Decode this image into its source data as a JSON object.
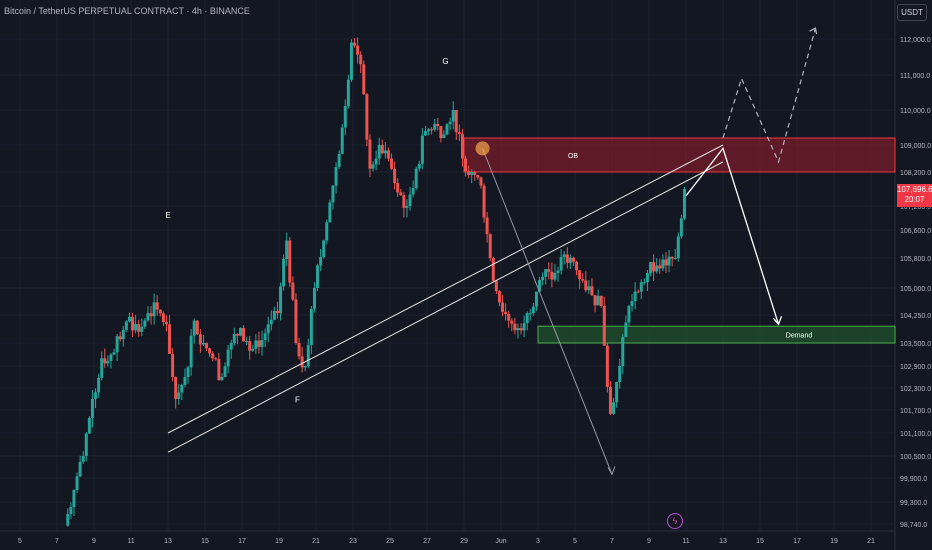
{
  "header": {
    "title": "Bitcoin / TetherUS PERPETUAL CONTRACT · 4h · BINANCE"
  },
  "unit_label": "USDT",
  "current_price": {
    "value": "107,696.6",
    "countdown": "20:07"
  },
  "colors": {
    "background": "#131722",
    "up": "#26a69a",
    "down": "#ef5350",
    "ob_zone": "#7a1c2a",
    "demand_zone": "#1f4d2c",
    "badge": "#f23645"
  },
  "icons": [
    "lightning-icon"
  ],
  "chart_data": {
    "type": "candlestick",
    "title": "",
    "x_ticks": [
      "5",
      "7",
      "9",
      "11",
      "13",
      "15",
      "17",
      "19",
      "21",
      "23",
      "25",
      "27",
      "29",
      "Jun",
      "3",
      "5",
      "7",
      "9",
      "11",
      "13",
      "15",
      "17",
      "19",
      "21"
    ],
    "y_ticks": [
      "112,000.0",
      "111,000.0",
      "110,000.0",
      "109,000.0",
      "108,200.0",
      "107,200.0",
      "106,600.0",
      "105,800.0",
      "105,000.0",
      "104,250.0",
      "103,500.0",
      "102,900.0",
      "102,300.0",
      "101,700.0",
      "101,100.0",
      "100,500.0",
      "99,900.0",
      "99,300.0",
      "98,740.0"
    ],
    "ylim": [
      98600,
      112600
    ],
    "price_series": [
      [
        "May 6 12:00",
        98700
      ],
      [
        "May 7",
        99600
      ],
      [
        "May 7 12:00",
        100500
      ],
      [
        "May 8",
        102000
      ],
      [
        "May 8 12:00",
        103100
      ],
      [
        "May 9",
        103200
      ],
      [
        "May 9 12:00",
        103600
      ],
      [
        "May 10",
        104200
      ],
      [
        "May 10 12:00",
        103800
      ],
      [
        "May 11",
        104300
      ],
      [
        "May 11 12:00",
        104400
      ],
      [
        "May 12",
        104000
      ],
      [
        "May 12 12:00",
        102000
      ],
      [
        "May 13",
        102600
      ],
      [
        "May 13 12:00",
        104100
      ],
      [
        "May 14",
        103500
      ],
      [
        "May 14 12:00",
        103100
      ],
      [
        "May 15",
        102600
      ],
      [
        "May 15 12:00",
        103500
      ],
      [
        "May 16",
        103900
      ],
      [
        "May 16 12:00",
        103300
      ],
      [
        "May 17",
        103400
      ],
      [
        "May 17 12:00",
        104000
      ],
      [
        "May 18",
        104300
      ],
      [
        "May 18 12:00",
        106300
      ],
      [
        "May 19",
        103500
      ],
      [
        "May 19 12:00",
        102900
      ],
      [
        "May 20",
        105000
      ],
      [
        "May 20 12:00",
        106300
      ],
      [
        "May 21",
        107800
      ],
      [
        "May 21 12:00",
        109500
      ],
      [
        "May 22",
        111900
      ],
      [
        "May 22 12:00",
        111300
      ],
      [
        "May 23",
        108300
      ],
      [
        "May 23 12:00",
        109000
      ],
      [
        "May 24",
        108600
      ],
      [
        "May 24 12:00",
        107600
      ],
      [
        "May 25",
        107200
      ],
      [
        "May 25 12:00",
        108300
      ],
      [
        "May 26",
        109400
      ],
      [
        "May 26 12:00",
        109600
      ],
      [
        "May 27",
        109300
      ],
      [
        "May 27 12:00",
        110000
      ],
      [
        "May 28",
        108600
      ],
      [
        "May 28 12:00",
        108200
      ],
      [
        "May 29",
        107800
      ],
      [
        "May 29 12:00",
        105800
      ],
      [
        "May 30",
        104600
      ],
      [
        "May 30 12:00",
        104100
      ],
      [
        "May 31",
        103900
      ],
      [
        "May 31 12:00",
        104300
      ],
      [
        "Jun 1",
        104900
      ],
      [
        "Jun 1 12:00",
        105500
      ],
      [
        "Jun 2",
        105400
      ],
      [
        "Jun 2 12:00",
        105900
      ],
      [
        "Jun 3",
        105700
      ],
      [
        "Jun 3 12:00",
        105200
      ],
      [
        "Jun 4",
        104800
      ],
      [
        "Jun 4 12:00",
        104500
      ],
      [
        "Jun 5",
        101600
      ],
      [
        "Jun 5 12:00",
        102900
      ],
      [
        "Jun 6",
        104500
      ],
      [
        "Jun 6 12:00",
        104900
      ],
      [
        "Jun 7",
        105400
      ],
      [
        "Jun 7 12:00",
        105600
      ],
      [
        "Jun 8",
        105600
      ],
      [
        "Jun 8 12:00",
        105800
      ],
      [
        "Jun 9",
        107696.6
      ]
    ],
    "zones": [
      {
        "label": "OB",
        "from": "May 28",
        "to": "Jun 22",
        "low": 108200,
        "high": 109200
      },
      {
        "label": "Demand",
        "from": "Jun 1",
        "to": "Jun 22",
        "low": 103500,
        "high": 103950
      }
    ],
    "annotations": [
      {
        "label": "E",
        "x": "May 12",
        "y": 106900
      },
      {
        "label": "F",
        "x": "May 19",
        "y": 101900
      },
      {
        "label": "G",
        "x": "May 27",
        "y": 111300
      }
    ],
    "channel_lines": [
      {
        "from": [
          "May 12",
          101100
        ],
        "to": [
          "Jun 11",
          109000
        ]
      },
      {
        "from": [
          "May 12",
          100600
        ],
        "to": [
          "Jun 11",
          108500
        ]
      }
    ],
    "projection_path": [
      [
        "Jun 9",
        107500
      ],
      [
        "Jun 11",
        108900
      ],
      [
        "Jun 14",
        104000
      ]
    ],
    "dashed_path": [
      [
        "Jun 11",
        109200
      ],
      [
        "Jun 12",
        110900
      ],
      [
        "Jun 14",
        108500
      ],
      [
        "Jun 16",
        112300
      ]
    ],
    "grey_arrow": {
      "from": [
        "May 29",
        108900
      ],
      "to": [
        "Jun 5",
        100000
      ]
    },
    "highlight": {
      "x": "May 29",
      "y": 108900
    },
    "grid": true
  }
}
